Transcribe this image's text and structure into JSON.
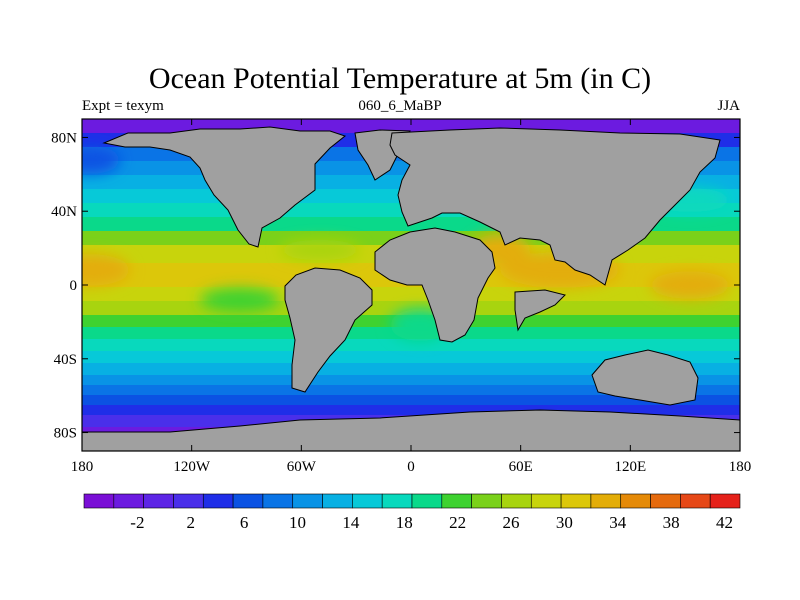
{
  "header": {
    "title": "Ocean Potential Temperature at 5m (in C)",
    "left": "Expt = texym",
    "center": "060_6_MaBP",
    "right": "JJA"
  },
  "map": {
    "projection": "cylindrical-equidistant",
    "land_color": "#a0a0a0",
    "coast_color": "#000000",
    "lon_ticks": [
      {
        "value": -180,
        "label": "180"
      },
      {
        "value": -120,
        "label": "120W"
      },
      {
        "value": -60,
        "label": "60W"
      },
      {
        "value": 0,
        "label": "0"
      },
      {
        "value": 60,
        "label": "60E"
      },
      {
        "value": 120,
        "label": "120E"
      },
      {
        "value": 180,
        "label": "180"
      }
    ],
    "lat_ticks": [
      {
        "value": 80,
        "label": "80N"
      },
      {
        "value": 40,
        "label": "40N"
      },
      {
        "value": 0,
        "label": "0"
      },
      {
        "value": -40,
        "label": "40S"
      },
      {
        "value": -80,
        "label": "80S"
      }
    ]
  },
  "colorbar": {
    "colors": [
      "#7a0fd6",
      "#6c1be0",
      "#5d25e6",
      "#4a2fea",
      "#1f2ee8",
      "#0b52e3",
      "#0a74e6",
      "#0993e6",
      "#08b0e3",
      "#07c9d8",
      "#08d9bd",
      "#0ad98a",
      "#3ed230",
      "#7ad11a",
      "#a8d40f",
      "#c8d40c",
      "#dcc70a",
      "#e3ad08",
      "#e58a08",
      "#e56a0d",
      "#e64817",
      "#e5211a"
    ],
    "labels": [
      {
        "index": 2,
        "text": "-2"
      },
      {
        "index": 4,
        "text": "2"
      },
      {
        "index": 6,
        "text": "6"
      },
      {
        "index": 8,
        "text": "10"
      },
      {
        "index": 10,
        "text": "14"
      },
      {
        "index": 12,
        "text": "18"
      },
      {
        "index": 14,
        "text": "22"
      },
      {
        "index": 16,
        "text": "26"
      },
      {
        "index": 18,
        "text": "30"
      },
      {
        "index": 20,
        "text": "34"
      },
      {
        "index": 22,
        "text": "38"
      },
      {
        "index": 24,
        "text": "42"
      }
    ]
  }
}
